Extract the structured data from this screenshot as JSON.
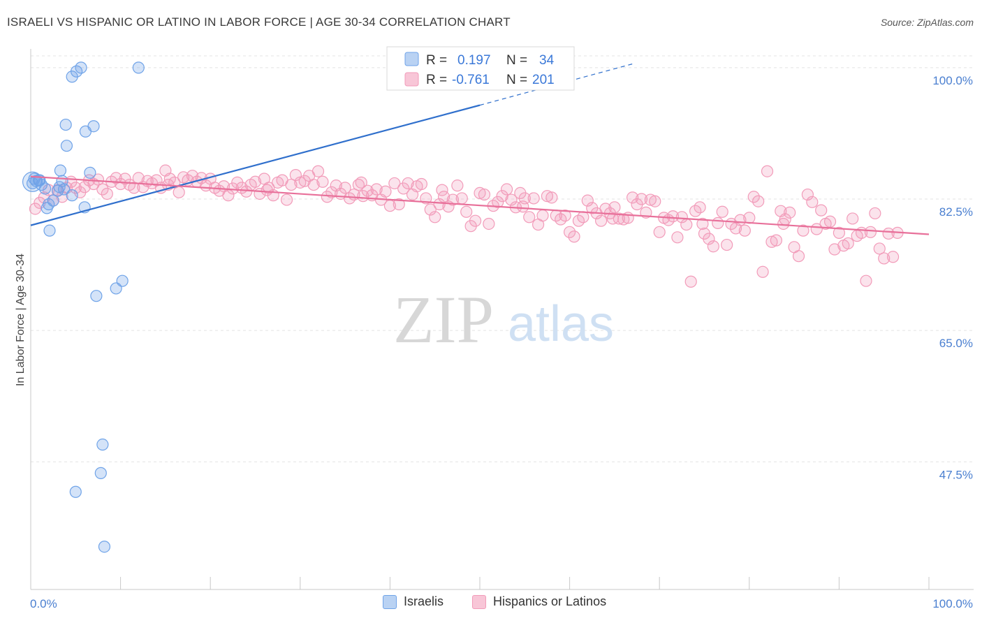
{
  "header": {
    "title": "ISRAELI VS HISPANIC OR LATINO IN LABOR FORCE | AGE 30-34 CORRELATION CHART",
    "source": "Source: ZipAtlas.com"
  },
  "watermark": {
    "zip": "ZIP",
    "atlas": "atlas"
  },
  "legend": {
    "rows": [
      {
        "r_label": "R =",
        "r_value": "0.197",
        "n_label": "N =",
        "n_value": "34"
      },
      {
        "r_label": "R =",
        "r_value": "-0.761",
        "n_label": "N =",
        "n_value": "201"
      }
    ]
  },
  "bottom_legend": {
    "israelis": "Israelis",
    "hispanics": "Hispanics or Latinos"
  },
  "chart_data": {
    "type": "scatter",
    "ylabel": "In Labor Force | Age 30-34",
    "x_ticks": [
      "0.0%",
      "100.0%"
    ],
    "y_ticks": [
      "100.0%",
      "82.5%",
      "65.0%",
      "47.5%"
    ],
    "y_tick_values": [
      100.0,
      82.5,
      65.0,
      47.5
    ],
    "xlim": [
      0,
      100
    ],
    "ylim": [
      30.5,
      102.5
    ],
    "grid": "horizontal dashed",
    "colors": {
      "israelis": "#6fa3e8",
      "hispanics": "#f29bb9",
      "israelis_line": "#2f6fcc",
      "hispanics_line": "#e8709a"
    },
    "series": [
      {
        "name": "Israelis",
        "points": [
          [
            0.2,
            84.6
          ],
          [
            0.4,
            85.2
          ],
          [
            0.6,
            84.9
          ],
          [
            0.9,
            85.0
          ],
          [
            1.2,
            84.4
          ],
          [
            1.6,
            83.9
          ],
          [
            1.8,
            81.3
          ],
          [
            2.0,
            81.8
          ],
          [
            2.1,
            78.3
          ],
          [
            2.5,
            82.3
          ],
          [
            3.0,
            83.6
          ],
          [
            3.3,
            86.3
          ],
          [
            3.5,
            84.9
          ],
          [
            3.7,
            83.8
          ],
          [
            3.9,
            92.4
          ],
          [
            4.0,
            89.6
          ],
          [
            4.6,
            83.0
          ],
          [
            4.6,
            98.8
          ],
          [
            5.1,
            99.5
          ],
          [
            6.0,
            81.4
          ],
          [
            5.6,
            100.0
          ],
          [
            6.1,
            91.5
          ],
          [
            6.6,
            86.0
          ],
          [
            7.0,
            92.2
          ],
          [
            7.3,
            69.6
          ],
          [
            8.0,
            49.8
          ],
          [
            7.8,
            46.0
          ],
          [
            9.5,
            70.6
          ],
          [
            10.2,
            71.6
          ],
          [
            12.0,
            100.0
          ],
          [
            5.0,
            43.5
          ],
          [
            8.2,
            36.2
          ],
          [
            1.0,
            85.0
          ],
          [
            3.2,
            84.1
          ]
        ]
      },
      {
        "name": "Hispanics or Latinos",
        "points": [
          [
            0.5,
            81.2
          ],
          [
            1.0,
            82.0
          ],
          [
            1.5,
            82.7
          ],
          [
            2.0,
            83.7
          ],
          [
            2.5,
            82.3
          ],
          [
            3.0,
            83.7
          ],
          [
            3.5,
            82.8
          ],
          [
            4.0,
            84.0
          ],
          [
            4.5,
            84.8
          ],
          [
            5.0,
            84.0
          ],
          [
            5.5,
            83.4
          ],
          [
            6.0,
            84.1
          ],
          [
            6.5,
            85.0
          ],
          [
            7.0,
            84.5
          ],
          [
            7.5,
            85.1
          ],
          [
            8.0,
            83.8
          ],
          [
            8.5,
            83.2
          ],
          [
            9.0,
            84.8
          ],
          [
            9.5,
            85.3
          ],
          [
            10.0,
            84.5
          ],
          [
            10.5,
            85.2
          ],
          [
            11.0,
            84.4
          ],
          [
            11.5,
            84.0
          ],
          [
            12.0,
            85.3
          ],
          [
            12.5,
            84.1
          ],
          [
            13.0,
            84.9
          ],
          [
            13.5,
            84.6
          ],
          [
            14.0,
            85.0
          ],
          [
            14.5,
            84.0
          ],
          [
            15.0,
            86.3
          ],
          [
            15.5,
            85.2
          ],
          [
            16.0,
            84.7
          ],
          [
            16.5,
            83.4
          ],
          [
            17.0,
            85.4
          ],
          [
            17.5,
            85.0
          ],
          [
            18.0,
            85.6
          ],
          [
            18.5,
            84.8
          ],
          [
            19.0,
            85.3
          ],
          [
            19.5,
            84.3
          ],
          [
            20.0,
            85.2
          ],
          [
            20.5,
            84.0
          ],
          [
            21.0,
            83.6
          ],
          [
            21.5,
            84.2
          ],
          [
            22.0,
            83.0
          ],
          [
            22.5,
            83.9
          ],
          [
            23.0,
            84.7
          ],
          [
            23.5,
            84.0
          ],
          [
            24.0,
            83.5
          ],
          [
            24.5,
            84.4
          ],
          [
            25.0,
            84.8
          ],
          [
            25.5,
            83.2
          ],
          [
            26.0,
            85.2
          ],
          [
            26.5,
            84.0
          ],
          [
            27.0,
            83.0
          ],
          [
            27.5,
            84.7
          ],
          [
            28.0,
            85.0
          ],
          [
            28.5,
            82.4
          ],
          [
            29.0,
            84.4
          ],
          [
            29.5,
            85.7
          ],
          [
            30.0,
            84.7
          ],
          [
            30.5,
            84.9
          ],
          [
            31.0,
            85.6
          ],
          [
            31.5,
            84.4
          ],
          [
            32.0,
            86.2
          ],
          [
            32.5,
            84.8
          ],
          [
            33.0,
            82.8
          ],
          [
            33.5,
            83.4
          ],
          [
            34.0,
            84.3
          ],
          [
            34.5,
            83.2
          ],
          [
            35.0,
            84.0
          ],
          [
            35.5,
            82.6
          ],
          [
            36.0,
            83.1
          ],
          [
            36.5,
            84.4
          ],
          [
            37.0,
            82.9
          ],
          [
            37.5,
            83.6
          ],
          [
            38.0,
            83.0
          ],
          [
            38.5,
            83.8
          ],
          [
            39.0,
            82.4
          ],
          [
            39.5,
            83.5
          ],
          [
            40.0,
            81.6
          ],
          [
            40.5,
            84.6
          ],
          [
            41.0,
            81.8
          ],
          [
            41.5,
            83.9
          ],
          [
            42.0,
            84.6
          ],
          [
            42.5,
            83.1
          ],
          [
            43.0,
            84.2
          ],
          [
            43.5,
            84.5
          ],
          [
            44.0,
            82.6
          ],
          [
            44.5,
            81.1
          ],
          [
            45.0,
            80.1
          ],
          [
            45.5,
            81.8
          ],
          [
            46.0,
            82.8
          ],
          [
            46.5,
            81.5
          ],
          [
            47.0,
            82.4
          ],
          [
            47.5,
            84.3
          ],
          [
            48.0,
            82.6
          ],
          [
            48.5,
            80.8
          ],
          [
            49.0,
            78.9
          ],
          [
            49.5,
            79.6
          ],
          [
            50.0,
            83.3
          ],
          [
            50.5,
            83.1
          ],
          [
            51.0,
            79.2
          ],
          [
            51.5,
            81.6
          ],
          [
            52.0,
            82.1
          ],
          [
            52.5,
            82.9
          ],
          [
            53.0,
            83.8
          ],
          [
            53.5,
            82.4
          ],
          [
            54.0,
            81.4
          ],
          [
            54.5,
            83.3
          ],
          [
            55.0,
            82.6
          ],
          [
            55.5,
            80.1
          ],
          [
            56.0,
            82.6
          ],
          [
            56.5,
            79.1
          ],
          [
            57.0,
            80.3
          ],
          [
            57.5,
            82.9
          ],
          [
            58.0,
            82.7
          ],
          [
            58.5,
            80.3
          ],
          [
            59.0,
            79.8
          ],
          [
            59.5,
            80.3
          ],
          [
            60.0,
            78.1
          ],
          [
            60.5,
            77.5
          ],
          [
            61.0,
            79.6
          ],
          [
            61.5,
            80.1
          ],
          [
            62.0,
            82.3
          ],
          [
            62.5,
            81.3
          ],
          [
            63.0,
            80.6
          ],
          [
            63.5,
            79.6
          ],
          [
            64.0,
            81.2
          ],
          [
            64.5,
            80.6
          ],
          [
            65.0,
            81.4
          ],
          [
            65.5,
            79.9
          ],
          [
            66.0,
            79.8
          ],
          [
            66.5,
            80.0
          ],
          [
            67.0,
            82.7
          ],
          [
            67.5,
            81.8
          ],
          [
            68.0,
            82.5
          ],
          [
            68.5,
            80.7
          ],
          [
            69.0,
            82.4
          ],
          [
            69.5,
            82.2
          ],
          [
            70.0,
            78.1
          ],
          [
            70.5,
            80.0
          ],
          [
            71.0,
            79.7
          ],
          [
            71.5,
            80.2
          ],
          [
            72.0,
            77.4
          ],
          [
            72.5,
            80.1
          ],
          [
            73.0,
            79.1
          ],
          [
            73.5,
            71.5
          ],
          [
            74.0,
            80.9
          ],
          [
            74.5,
            81.4
          ],
          [
            75.0,
            77.9
          ],
          [
            75.5,
            77.2
          ],
          [
            76.0,
            76.2
          ],
          [
            76.5,
            79.3
          ],
          [
            77.0,
            80.8
          ],
          [
            77.5,
            76.4
          ],
          [
            78.0,
            79.2
          ],
          [
            78.5,
            78.6
          ],
          [
            79.0,
            79.7
          ],
          [
            79.5,
            78.3
          ],
          [
            80.0,
            80.0
          ],
          [
            80.5,
            82.8
          ],
          [
            81.0,
            82.2
          ],
          [
            81.5,
            72.8
          ],
          [
            82.0,
            86.2
          ],
          [
            82.5,
            76.8
          ],
          [
            83.0,
            77.0
          ],
          [
            83.5,
            80.9
          ],
          [
            84.0,
            79.8
          ],
          [
            84.5,
            80.7
          ],
          [
            85.0,
            76.1
          ],
          [
            85.5,
            74.9
          ],
          [
            86.0,
            78.3
          ],
          [
            86.5,
            83.1
          ],
          [
            87.0,
            82.1
          ],
          [
            87.5,
            78.5
          ],
          [
            88.0,
            81.0
          ],
          [
            88.5,
            79.2
          ],
          [
            89.0,
            79.5
          ],
          [
            89.5,
            75.8
          ],
          [
            90.0,
            78.0
          ],
          [
            90.5,
            76.3
          ],
          [
            91.0,
            76.6
          ],
          [
            91.5,
            79.9
          ],
          [
            92.0,
            77.6
          ],
          [
            92.5,
            78.0
          ],
          [
            93.0,
            71.6
          ],
          [
            93.5,
            78.1
          ],
          [
            94.0,
            80.6
          ],
          [
            94.5,
            75.9
          ],
          [
            95.0,
            74.6
          ],
          [
            95.5,
            77.9
          ],
          [
            96.0,
            74.8
          ],
          [
            96.5,
            78.0
          ],
          [
            15.3,
            84.4
          ],
          [
            26.3,
            83.7
          ],
          [
            36.8,
            84.7
          ],
          [
            45.8,
            83.7
          ],
          [
            54.8,
            81.5
          ],
          [
            64.8,
            79.9
          ],
          [
            74.8,
            79.2
          ],
          [
            83.8,
            79.2
          ]
        ]
      }
    ],
    "trend_lines": [
      {
        "name": "Israelis",
        "x": [
          0,
          50
        ],
        "y": [
          79.0,
          95.0
        ],
        "dashed_extension": {
          "x": [
            50,
            67
          ],
          "y": [
            95.0,
            100.5
          ]
        }
      },
      {
        "name": "Hispanics or Latinos",
        "x": [
          0,
          100
        ],
        "y": [
          85.5,
          77.8
        ]
      }
    ]
  }
}
